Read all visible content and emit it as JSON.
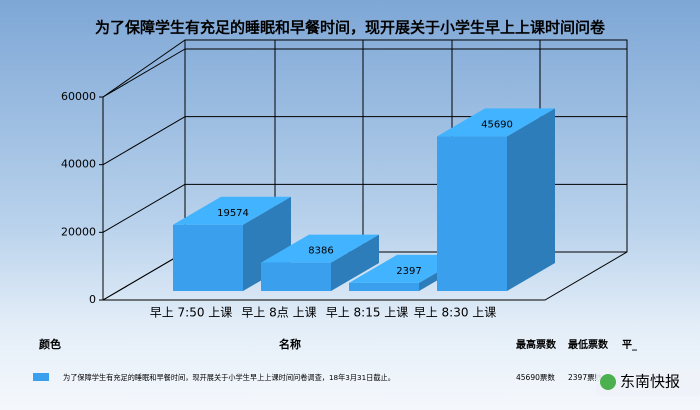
{
  "chart_data": {
    "type": "bar3d",
    "title": "为了保障学生有充足的睡眠和早餐时间，现开展关于小学生早上上课时间问卷",
    "categories": [
      "早上 7:50 上课",
      "早上 8点 上课",
      "早上 8:15 上课",
      "早上 8:30 上课"
    ],
    "values": [
      19574,
      8386,
      2397,
      45690
    ],
    "color": "#3aa0ee",
    "ylim": [
      0,
      60000
    ],
    "yticks": [
      0,
      20000,
      40000,
      60000
    ],
    "grid": true
  },
  "table": {
    "headers": [
      "颜色",
      "名称",
      "最高票数",
      "最低票数",
      "平_"
    ],
    "rows": [
      [
        "为了保障学生有充足的睡眠和早餐时间，现开展关于小学生早上上课时间问卷调查，18年3月31日截止。",
        "45690票数",
        "2397票数"
      ]
    ]
  },
  "watermark": "东南快报"
}
